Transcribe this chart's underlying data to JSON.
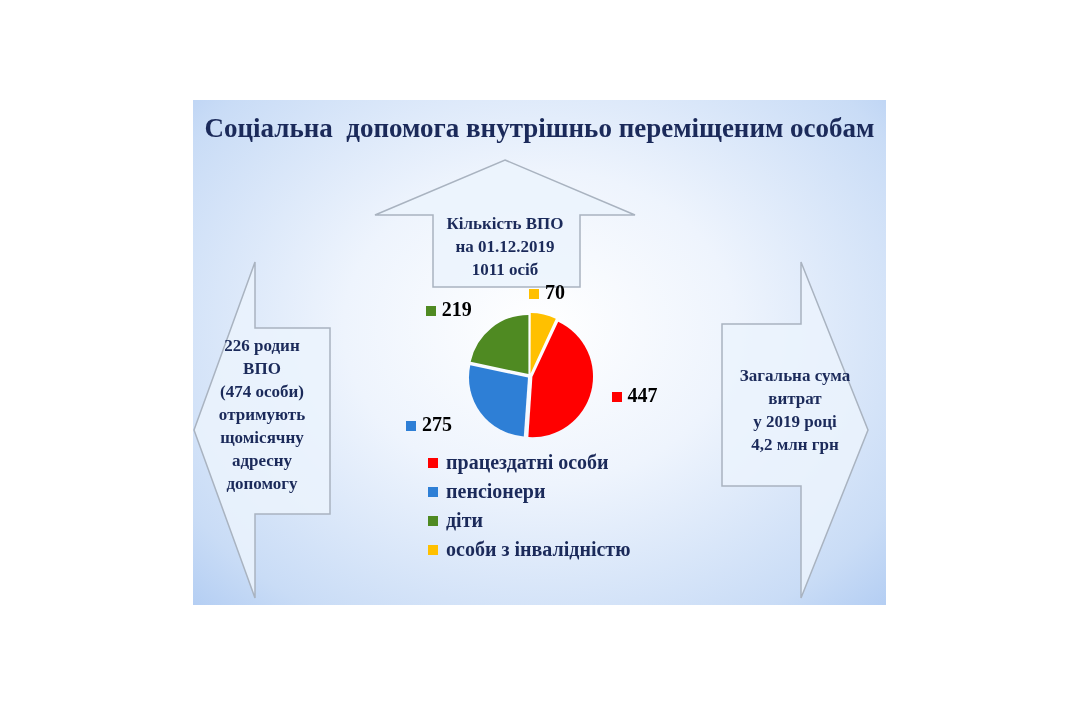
{
  "chart_data": {
    "type": "pie",
    "title": "Соціальна  допомога внутрішньо переміщеним особам",
    "categories": [
      "працездатні особи",
      "пенсіонери",
      "діти",
      "особи з інвалідністю"
    ],
    "values": [
      447,
      275,
      219,
      70
    ],
    "colors": [
      "#ff0000",
      "#2e7fd6",
      "#4f8a22",
      "#ffc000"
    ],
    "data_labels": true,
    "legend": "bottom",
    "annotations": [
      "Кількість ВПО\nна 01.12.2019\n1011 осіб",
      "226 родин\nВПО\n(474 особи)\nотримують\nщомісячну\nадресну\nдопомогу",
      "Загальна сума\nвитрат\nу 2019 році\n4,2 млн грн"
    ]
  }
}
